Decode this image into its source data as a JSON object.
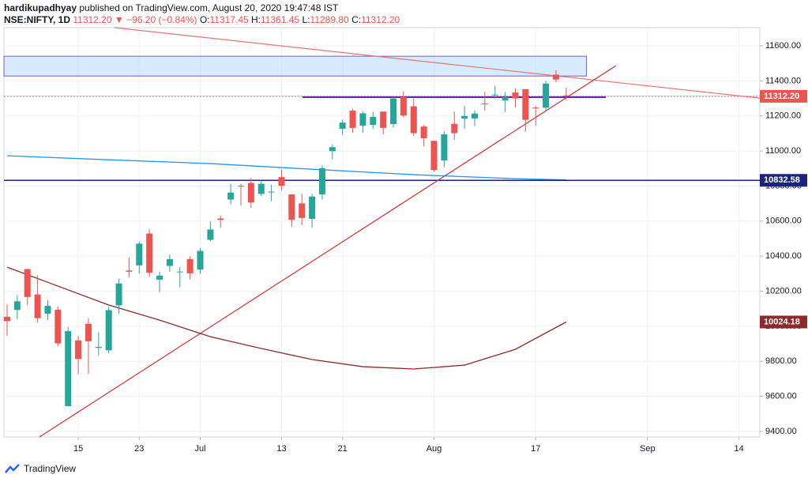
{
  "chart_data": {
    "type": "candlestick",
    "header": {
      "author": "hardikupadhyay",
      "published": "published on TradingView.com, August 20, 2020 19:47:48 IST",
      "symbol": "NSE:NIFTY, 1D",
      "price": "11312.20",
      "change": "▼ −96.20 (−0.84%)",
      "ohlc": [
        {
          "label": "O:",
          "value": "11317.45"
        },
        {
          "label": "H:",
          "value": "11361.45"
        },
        {
          "label": "L:",
          "value": "11289.80"
        },
        {
          "label": "C:",
          "value": "11312.20"
        }
      ]
    },
    "footer": "TradingView",
    "up_color": "#26a69a",
    "down_color": "#ef5350",
    "xlim": [
      -0.31,
      74.05
    ],
    "ylim": [
      9368,
      11704
    ],
    "xticks": [
      {
        "value": 7,
        "label": "15"
      },
      {
        "value": 13,
        "label": "23"
      },
      {
        "value": 19,
        "label": "Jul"
      },
      {
        "value": 27,
        "label": "13"
      },
      {
        "value": 33,
        "label": "21"
      },
      {
        "value": 42,
        "label": "Aug"
      },
      {
        "value": 52,
        "label": "17"
      },
      {
        "value": 63,
        "label": "Sep"
      },
      {
        "value": 72,
        "label": "14"
      }
    ],
    "yticks": [
      {
        "value": 9400,
        "label": "9400.00"
      },
      {
        "value": 9600,
        "label": "9600.00"
      },
      {
        "value": 9800,
        "label": "9800.00"
      },
      {
        "value": 10000,
        "label": "10000.00"
      },
      {
        "value": 10200,
        "label": "10200.00"
      },
      {
        "value": 10400,
        "label": "10400.00"
      },
      {
        "value": 10600,
        "label": "10600.00"
      },
      {
        "value": 10800,
        "label": "10800.00"
      },
      {
        "value": 11000,
        "label": "11000.00"
      },
      {
        "value": 11200,
        "label": "11200.00"
      },
      {
        "value": 11400,
        "label": "11400.00"
      },
      {
        "value": 11600,
        "label": "11600.00"
      }
    ],
    "grid": true,
    "candles": {
      "x": [
        0,
        1,
        2,
        3,
        4,
        5,
        6,
        7,
        8,
        9,
        10,
        11,
        12,
        13,
        14,
        15,
        16,
        17,
        18,
        19,
        20,
        21,
        22,
        23,
        24,
        25,
        26,
        27,
        28,
        29,
        30,
        31,
        32,
        33,
        34,
        35,
        36,
        37,
        38,
        39,
        40,
        41,
        42,
        43,
        44,
        45,
        46,
        47,
        48,
        49,
        50,
        51,
        52,
        53,
        54,
        55
      ],
      "open": [
        10054,
        10093,
        10326,
        10181,
        10072,
        10094,
        9544,
        9919,
        10014,
        9876,
        9863,
        10119,
        10318,
        10347,
        10529,
        10266,
        10344,
        10311,
        10383,
        10323,
        10493,
        10615,
        10723,
        10802,
        10818,
        10755,
        10764,
        10851,
        10752,
        10701,
        10613,
        10752,
        10999,
        11127,
        11230,
        11145,
        11149,
        11225,
        11154,
        11308,
        11255,
        11140,
        11058,
        10946,
        11155,
        11185,
        11186,
        11271,
        11322,
        11289,
        11334,
        11353,
        11248,
        11247,
        11436,
        11317.45
      ],
      "high": [
        10123,
        10177,
        10328,
        10291,
        10148,
        10112,
        9996,
        9944,
        10046,
        9966,
        10111,
        10272,
        10393,
        10484,
        10553,
        10312,
        10409,
        10337,
        10401,
        10447,
        10598,
        10632,
        10811,
        10813,
        10847,
        10830,
        10808,
        10894,
        10755,
        10755,
        10755,
        10918,
        11037,
        11179,
        11240,
        11225,
        11225,
        11225,
        11310,
        11341,
        11300,
        11150,
        11058,
        11112,
        11225,
        11257,
        11231,
        11338,
        11373,
        11337,
        11359,
        11353,
        11256,
        11401,
        11460,
        11361.45
      ],
      "low": [
        9944,
        10040,
        10120,
        10021,
        10036,
        9885,
        9544,
        9726,
        9728,
        9833,
        9845,
        10072,
        10277,
        10301,
        10281,
        10194,
        10311,
        10223,
        10267,
        10300,
        10485,
        10562,
        10695,
        10689,
        10676,
        10743,
        10713,
        10776,
        10566,
        10578,
        10562,
        10723,
        10953,
        11091,
        11104,
        11104,
        11126,
        11094,
        11133,
        11192,
        11085,
        11026,
        10882,
        10908,
        11064,
        11127,
        11142,
        11231,
        11299,
        11222,
        11250,
        11111,
        11144,
        11225,
        11393,
        11289.8
      ],
      "close": [
        10029,
        10142,
        10167,
        10046,
        10116,
        9902,
        9972,
        9813,
        9914,
        9882,
        10092,
        10244,
        10311,
        10471,
        10305,
        10289,
        10383,
        10312,
        10302,
        10430,
        10552,
        10607,
        10763,
        10800,
        10706,
        10813,
        10768,
        10802,
        10607,
        10618,
        10740,
        10902,
        11022,
        11162,
        11132,
        11215,
        11194,
        11132,
        11300,
        11203,
        11102,
        11073,
        10892,
        11095,
        11102,
        11200,
        11214,
        11270,
        11322,
        11308,
        11300,
        11178,
        11247,
        11385,
        11408,
        11312.2
      ]
    },
    "lines": [
      {
        "color": "#2196f3",
        "x": [
          0,
          10,
          20,
          30,
          40,
          50,
          55
        ],
        "values": [
          10973,
          10950,
          10928,
          10896,
          10865,
          10842,
          10835
        ]
      },
      {
        "color": "#8d2a2a",
        "x": [
          0,
          5,
          10,
          15,
          20,
          25,
          30,
          35,
          40,
          45,
          50,
          55
        ],
        "values": [
          10337,
          10229,
          10121,
          10035,
          9940,
          9873,
          9810,
          9769,
          9756,
          9778,
          9868,
          10024.18
        ],
        "show_last": true
      }
    ],
    "zones": [
      {
        "color": "#bbdefb",
        "border": "#7e57c2",
        "x": [
          -0.31,
          57
        ],
        "y": [
          11428,
          11541
        ]
      }
    ],
    "trendlines": [
      {
        "color": "#e57373",
        "x": [
          10.57,
          74.05
        ],
        "y": [
          11704,
          11302
        ]
      },
      {
        "color": "#d32f2f",
        "x": [
          3.19,
          59.9
        ],
        "y": [
          9368,
          11487
        ]
      },
      {
        "color": "#7b1fa2",
        "x": [
          29.06,
          58.9
        ],
        "y": [
          11307,
          11307
        ]
      }
    ],
    "hlines": [
      {
        "value": 10832.58,
        "color": "#1a237e",
        "style": "solid"
      },
      {
        "value": 11312.2,
        "label": "11312.20",
        "color": "#ef5350",
        "style": "dotted"
      }
    ]
  }
}
